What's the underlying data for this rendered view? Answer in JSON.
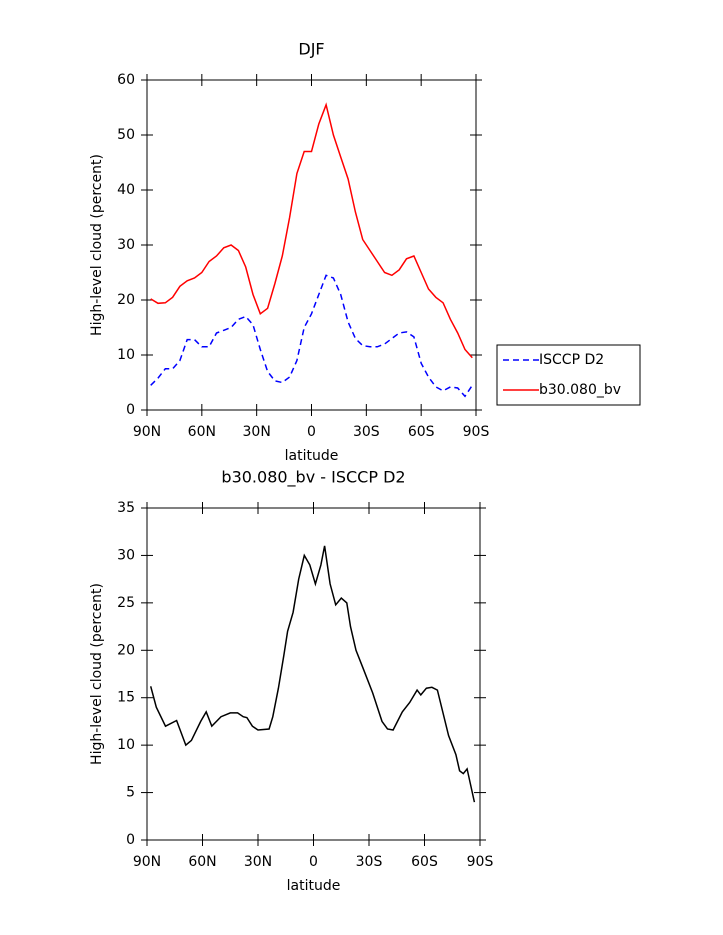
{
  "chart_data": [
    {
      "type": "line",
      "title": "DJF",
      "xlabel": "latitude",
      "ylabel": "High-level cloud (percent)",
      "x": [
        88,
        84,
        80,
        76,
        72,
        68,
        64,
        60,
        56,
        52,
        48,
        44,
        40,
        36,
        32,
        28,
        24,
        20,
        16,
        12,
        8,
        4,
        0,
        -4,
        -8,
        -12,
        -16,
        -20,
        -24,
        -28,
        -32,
        -36,
        -40,
        -44,
        -48,
        -52,
        -56,
        -60,
        -64,
        -68,
        -72,
        -76,
        -80,
        -84,
        -88
      ],
      "series": [
        {
          "name": "ISCCP D2",
          "color": "#0000ff",
          "dashed": true,
          "values": [
            4.5,
            5.8,
            7.5,
            7.5,
            9,
            12.8,
            12.8,
            11.5,
            11.5,
            14,
            14.5,
            15,
            16.5,
            17,
            15.5,
            11,
            7,
            5.3,
            5,
            6,
            9,
            15,
            17.5,
            21,
            24.5,
            24,
            21,
            16,
            13,
            11.7,
            11.5,
            11.5,
            12,
            13,
            14,
            14.2,
            13.3,
            8.5,
            6,
            4.2,
            3.5,
            4.2,
            4,
            2.5,
            4.5
          ]
        },
        {
          "name": "b30.080_bv",
          "color": "#ff0000",
          "dashed": false,
          "values": [
            20.2,
            19.4,
            19.5,
            20.5,
            22.5,
            23.5,
            24,
            25,
            27,
            28,
            29.5,
            30,
            29,
            26,
            21,
            17.5,
            18.5,
            23,
            28,
            35,
            43,
            47,
            47,
            52,
            55.5,
            50,
            46,
            42,
            36,
            31,
            29,
            27,
            25,
            24.5,
            25.5,
            27.5,
            28,
            25,
            22,
            20.5,
            19.5,
            16.5,
            14,
            11,
            9.5
          ]
        }
      ],
      "xlim": [
        90,
        -90
      ],
      "xticks": [
        {
          "value": 90,
          "label": "90N"
        },
        {
          "value": 60,
          "label": "60N"
        },
        {
          "value": 30,
          "label": "30N"
        },
        0,
        {
          "value": -30,
          "label": "30S"
        },
        {
          "value": -60,
          "label": "60S"
        },
        {
          "value": -90,
          "label": "90S"
        }
      ],
      "ylim": [
        0,
        60
      ],
      "yticks": [
        0,
        10,
        20,
        30,
        40,
        50,
        60
      ],
      "legend": "right"
    },
    {
      "type": "line",
      "title": "b30.080_bv - ISCCP D2",
      "xlabel": "latitude",
      "ylabel": "High-level cloud (percent)",
      "x": [
        88,
        85,
        80,
        74,
        69,
        66,
        61,
        58,
        55,
        50,
        45,
        41,
        38,
        36,
        33,
        30,
        24,
        22,
        19,
        16,
        14,
        11,
        8,
        5,
        2,
        -1,
        -4,
        -6,
        -9,
        -12,
        -15,
        -18,
        -20,
        -23,
        -27,
        -32,
        -37,
        -40,
        -43,
        -48,
        -52,
        -56,
        -58,
        -61,
        -64,
        -67,
        -73,
        -77,
        -79,
        -81,
        -83,
        -87
      ],
      "series": [
        {
          "name": "b30.080_bv - ISCCP D2",
          "color": "#000000",
          "dashed": false,
          "values": [
            16.2,
            14,
            12,
            12.6,
            10,
            10.5,
            12.5,
            13.5,
            12,
            13,
            13.4,
            13.4,
            13,
            12.9,
            12,
            11.6,
            11.7,
            13,
            16,
            19.5,
            22,
            24,
            27.5,
            30,
            29,
            27,
            29,
            31,
            27,
            24.8,
            25.5,
            25,
            22.5,
            20,
            18,
            15.5,
            12.5,
            11.7,
            11.6,
            13.5,
            14.5,
            15.8,
            15.3,
            16,
            16.1,
            15.8,
            11,
            9,
            7.3,
            7,
            7.5,
            4
          ]
        }
      ],
      "xlim": [
        90,
        -90
      ],
      "xticks": [
        {
          "value": 90,
          "label": "90N"
        },
        {
          "value": 60,
          "label": "60N"
        },
        {
          "value": 30,
          "label": "30N"
        },
        0,
        {
          "value": -30,
          "label": "30S"
        },
        {
          "value": -60,
          "label": "60S"
        },
        {
          "value": -90,
          "label": "90S"
        }
      ],
      "ylim": [
        0,
        35
      ],
      "yticks": [
        0,
        5,
        10,
        15,
        20,
        25,
        30,
        35
      ]
    }
  ]
}
